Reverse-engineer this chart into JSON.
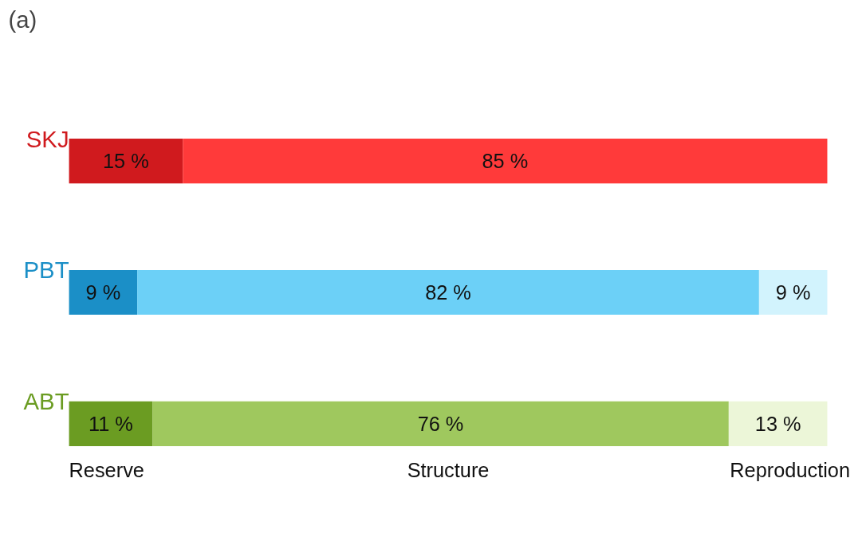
{
  "chart_data": {
    "type": "bar",
    "title": "(a)",
    "orientation": "horizontal",
    "stacked": true,
    "categories": [
      "SKJ",
      "PBT",
      "ABT"
    ],
    "series": [
      {
        "name": "Reserve",
        "colors": [
          "#d01a1e",
          "#1b8fc7",
          "#6b9c22"
        ],
        "values": [
          15,
          9,
          11
        ],
        "value_labels": [
          "15 %",
          "9 %",
          "11 %"
        ]
      },
      {
        "name": "Structure",
        "colors": [
          "#ff3a3a",
          "#6cd0f7",
          "#9fc85e"
        ],
        "values": [
          85,
          82,
          76
        ],
        "value_labels": [
          "85 %",
          "82 %",
          "76 %"
        ]
      },
      {
        "name": "Reproduction",
        "colors": [
          "#ff3a3a",
          "#d2f3fd",
          "#ecf6d8"
        ],
        "values": [
          null,
          9,
          13
        ],
        "value_labels": [
          null,
          "9 %",
          "13 %"
        ]
      }
    ]
  }
}
